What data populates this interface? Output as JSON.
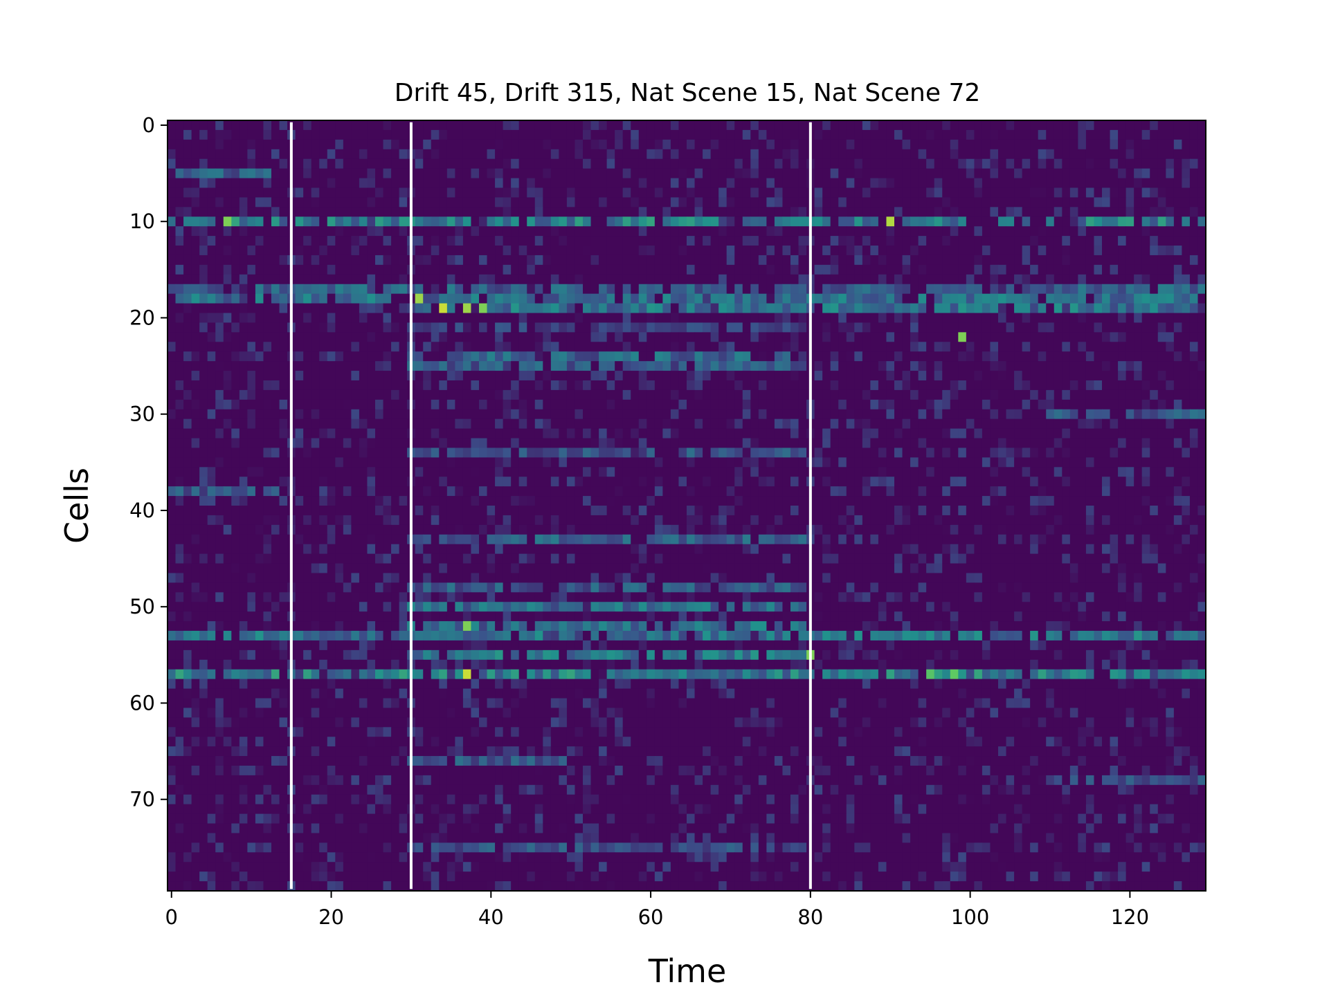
{
  "chart_data": {
    "type": "heatmap",
    "title": "Drift 45, Drift 315, Nat Scene 15, Nat Scene 72",
    "xlabel": "Time",
    "ylabel": "Cells",
    "x_range": [
      -0.5,
      129.5
    ],
    "y_range": [
      79.5,
      -0.5
    ],
    "n_time_bins": 130,
    "n_cells": 80,
    "x_ticks": [
      0,
      20,
      40,
      60,
      80,
      100,
      120
    ],
    "y_ticks": [
      0,
      10,
      20,
      30,
      40,
      50,
      60,
      70
    ],
    "colormap": "viridis",
    "value_range": [
      0,
      1
    ],
    "background_value": 0.02,
    "stimulus_boundaries": [
      15,
      30,
      80
    ],
    "boundary_color": "#ffffff",
    "active_cells": [
      {
        "cell": 5,
        "level": 0.32,
        "t_start": 0,
        "t_end": 13
      },
      {
        "cell": 10,
        "level": 0.45,
        "t_start": 0,
        "t_end": 130
      },
      {
        "cell": 17,
        "level": 0.33,
        "t_start": 0,
        "t_end": 130
      },
      {
        "cell": 18,
        "level": 0.38,
        "t_start": 0,
        "t_end": 130
      },
      {
        "cell": 19,
        "level": 0.4,
        "t_start": 30,
        "t_end": 130
      },
      {
        "cell": 21,
        "level": 0.22,
        "t_start": 30,
        "t_end": 80
      },
      {
        "cell": 24,
        "level": 0.35,
        "t_start": 30,
        "t_end": 80
      },
      {
        "cell": 25,
        "level": 0.3,
        "t_start": 30,
        "t_end": 80
      },
      {
        "cell": 30,
        "level": 0.3,
        "t_start": 110,
        "t_end": 130
      },
      {
        "cell": 34,
        "level": 0.28,
        "t_start": 30,
        "t_end": 80
      },
      {
        "cell": 38,
        "level": 0.28,
        "t_start": 0,
        "t_end": 14
      },
      {
        "cell": 43,
        "level": 0.32,
        "t_start": 30,
        "t_end": 80
      },
      {
        "cell": 48,
        "level": 0.3,
        "t_start": 30,
        "t_end": 80
      },
      {
        "cell": 50,
        "level": 0.38,
        "t_start": 30,
        "t_end": 80
      },
      {
        "cell": 52,
        "level": 0.4,
        "t_start": 30,
        "t_end": 80
      },
      {
        "cell": 53,
        "level": 0.4,
        "t_start": 0,
        "t_end": 130
      },
      {
        "cell": 55,
        "level": 0.42,
        "t_start": 30,
        "t_end": 80
      },
      {
        "cell": 57,
        "level": 0.45,
        "t_start": 0,
        "t_end": 130
      },
      {
        "cell": 66,
        "level": 0.3,
        "t_start": 30,
        "t_end": 50
      },
      {
        "cell": 68,
        "level": 0.25,
        "t_start": 110,
        "t_end": 130
      },
      {
        "cell": 75,
        "level": 0.28,
        "t_start": 30,
        "t_end": 80
      }
    ],
    "peaks": [
      {
        "t": 7,
        "cell": 10,
        "value": 0.8
      },
      {
        "t": 90,
        "cell": 10,
        "value": 0.88
      },
      {
        "t": 31,
        "cell": 18,
        "value": 0.85
      },
      {
        "t": 34,
        "cell": 19,
        "value": 0.92
      },
      {
        "t": 37,
        "cell": 19,
        "value": 0.85
      },
      {
        "t": 39,
        "cell": 19,
        "value": 0.8
      },
      {
        "t": 99,
        "cell": 22,
        "value": 0.8
      },
      {
        "t": 37,
        "cell": 52,
        "value": 0.8
      },
      {
        "t": 80,
        "cell": 55,
        "value": 0.8
      },
      {
        "t": 37,
        "cell": 57,
        "value": 0.92
      },
      {
        "t": 95,
        "cell": 57,
        "value": 0.72
      },
      {
        "t": 98,
        "cell": 57,
        "value": 0.75
      }
    ]
  }
}
